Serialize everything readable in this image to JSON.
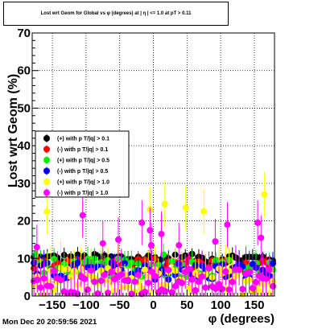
{
  "chart_data": {
    "type": "scatter",
    "title": "Lost wrt Geom for Global vs φ (degrees) at | η | <= 1.0 at pT > 0.11",
    "xlabel": "φ (degrees)",
    "ylabel": "Lost wrt Geom (%)",
    "xlim": [
      -180,
      180
    ],
    "ylim": [
      0,
      70
    ],
    "x_ticks": [
      -150,
      -100,
      -50,
      0,
      50,
      100,
      150
    ],
    "x_tick_labels": [
      "−150",
      "−100",
      "−50",
      "0",
      "50",
      "100",
      "150"
    ],
    "y_ticks": [
      0,
      10,
      20,
      30,
      40,
      50,
      60,
      70
    ],
    "y_tick_labels": [
      "0",
      "10",
      "20",
      "30",
      "40",
      "50",
      "60",
      "70"
    ],
    "grid": true,
    "legend_position": "left-middle",
    "series": [
      {
        "name": "(+) with p T/|q| > 0.1",
        "color": "#000000",
        "base": 10,
        "amp": 1.2,
        "err": 1.5,
        "spikes": []
      },
      {
        "name": "(-) with p T/|q| > 0.1",
        "color": "#ff0000",
        "base": 8.5,
        "amp": 1.5,
        "err": 1.5,
        "spikes": []
      },
      {
        "name": "(+) with p T/|q| > 0.5",
        "color": "#00ee00",
        "base": 7.5,
        "amp": 2.5,
        "err": 2.5,
        "spikes": [
          [
            -175,
            11
          ],
          [
            15,
            11
          ]
        ]
      },
      {
        "name": "(-) with p T/|q| > 0.5",
        "color": "#0000ff",
        "base": 6.5,
        "amp": 2.5,
        "err": 2.5,
        "spikes": []
      },
      {
        "name": "(+) with p T/|q| > 1.0",
        "color": "#ffff00",
        "base": 4,
        "amp": 3.5,
        "err": 5,
        "spikes": [
          [
            -158,
            22.5
          ],
          [
            -5,
            23
          ],
          [
            17,
            24.5
          ],
          [
            48,
            23.5
          ],
          [
            75,
            22.5
          ],
          [
            165,
            27
          ]
        ]
      },
      {
        "name": "(-) with p T/|q| > 1.0",
        "color": "#ff00ff",
        "base": 4,
        "amp": 3.5,
        "err": 5,
        "spikes": [
          [
            -173,
            13
          ],
          [
            -105,
            21.5
          ],
          [
            -75,
            14
          ],
          [
            -52,
            15
          ],
          [
            -17,
            19.5
          ],
          [
            -3,
            13.5
          ],
          [
            -5,
            17.5
          ],
          [
            12,
            16.5
          ],
          [
            38,
            13.5
          ],
          [
            92,
            14.5
          ],
          [
            110,
            19
          ],
          [
            155,
            19.5
          ],
          [
            160,
            15.5
          ]
        ]
      }
    ]
  },
  "stamp": "Mon Dec 20 20:59:56 2021"
}
